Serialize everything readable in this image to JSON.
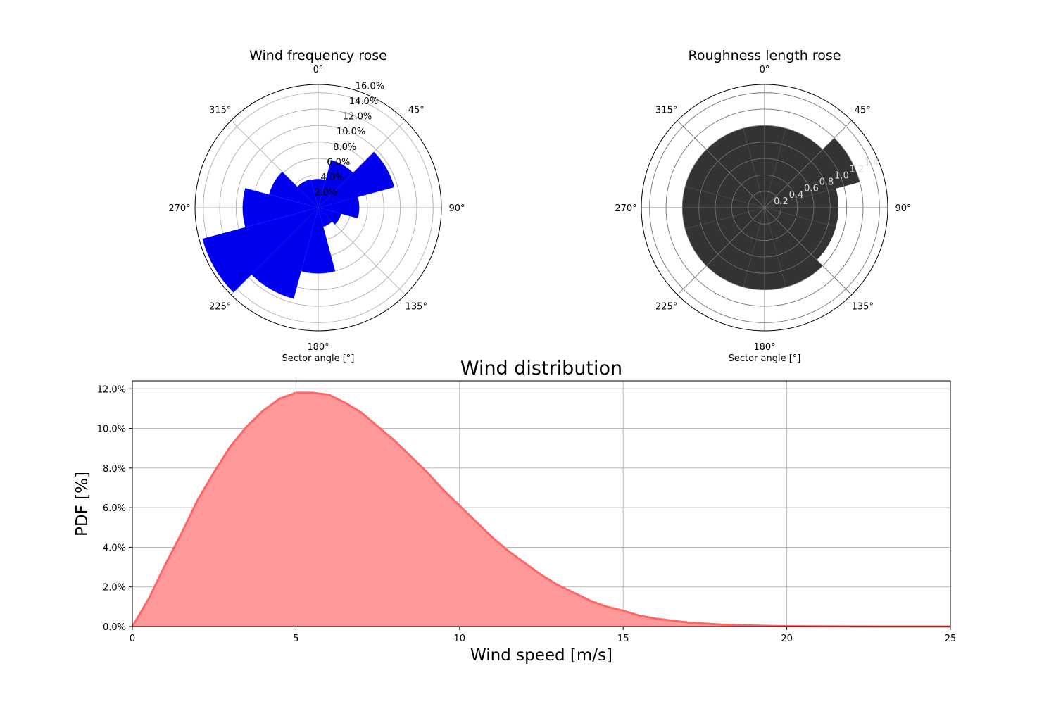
{
  "chart_data": [
    {
      "type": "polar-bar",
      "title": "Wind frequency rose",
      "xlabel": "Sector angle [°]",
      "angle_tick_labels": [
        "0°",
        "45°",
        "90°",
        "135°",
        "180°",
        "225°",
        "270°",
        "315°"
      ],
      "radial_tick_labels": [
        "2.0%",
        "4.0%",
        "6.0%",
        "8.0%",
        "10.0%",
        "12.0%",
        "14.0%",
        "16.0%"
      ],
      "rlim": [
        0,
        15
      ],
      "sector_angles_deg": [
        0,
        30,
        60,
        90,
        120,
        150,
        180,
        210,
        240,
        270,
        300,
        330
      ],
      "values": [
        3.5,
        6.0,
        9.6,
        5.0,
        2.9,
        2.4,
        8.0,
        11.5,
        14.6,
        9.2,
        6.2,
        3.6
      ],
      "unit": "%",
      "bar_color": "#0000ee"
    },
    {
      "type": "polar-bar",
      "title": "Roughness length rose",
      "xlabel": "Sector angle [°]",
      "angle_tick_labels": [
        "0°",
        "45°",
        "90°",
        "135°",
        "180°",
        "225°",
        "270°",
        "315°"
      ],
      "radial_tick_labels": [
        "0.2",
        "0.4",
        "0.6",
        "0.8",
        "1.0",
        "1.2",
        "1.4"
      ],
      "rlim": [
        0,
        1.5
      ],
      "sector_angles_deg": [
        0,
        30,
        60,
        90,
        120,
        150,
        180,
        210,
        240,
        270,
        300,
        330
      ],
      "values": [
        1.0,
        1.0,
        1.2,
        0.9,
        0.9,
        1.0,
        1.0,
        1.0,
        1.0,
        1.0,
        1.0,
        1.0
      ],
      "bar_color": "#333333"
    },
    {
      "type": "area",
      "title": "Wind distribution",
      "xlabel": "Wind speed [m/s]",
      "ylabel": "PDF [%]",
      "xlim": [
        0,
        25
      ],
      "ylim": [
        0,
        12.4
      ],
      "x_ticks": [
        0,
        5,
        10,
        15,
        20,
        25
      ],
      "y_ticks": [
        0,
        2,
        4,
        6,
        8,
        10,
        12
      ],
      "y_tick_labels": [
        "0.0%",
        "2.0%",
        "4.0%",
        "6.0%",
        "8.0%",
        "10.0%",
        "12.0%"
      ],
      "grid": true,
      "x": [
        0,
        0.5,
        1,
        1.5,
        2,
        2.5,
        3,
        3.5,
        4,
        4.5,
        5,
        5.5,
        6,
        6.5,
        7,
        7.5,
        8,
        8.5,
        9,
        9.5,
        10,
        10.5,
        11,
        11.5,
        12,
        12.5,
        13,
        13.5,
        14,
        14.5,
        15,
        15.5,
        16,
        16.5,
        17,
        17.5,
        18,
        18.5,
        19,
        19.5,
        20,
        21,
        22,
        23,
        24,
        25
      ],
      "y": [
        0,
        1.4,
        3.1,
        4.7,
        6.4,
        7.8,
        9.1,
        10.1,
        10.9,
        11.5,
        11.8,
        11.8,
        11.7,
        11.3,
        10.8,
        10.1,
        9.4,
        8.6,
        7.8,
        6.9,
        6.1,
        5.3,
        4.5,
        3.8,
        3.2,
        2.6,
        2.1,
        1.7,
        1.3,
        1.0,
        0.8,
        0.55,
        0.4,
        0.3,
        0.2,
        0.15,
        0.1,
        0.07,
        0.05,
        0.03,
        0.02,
        0.01,
        0.005,
        0,
        0,
        0
      ],
      "fill_color": "#ff9999",
      "line_color": "#ff6666"
    }
  ]
}
